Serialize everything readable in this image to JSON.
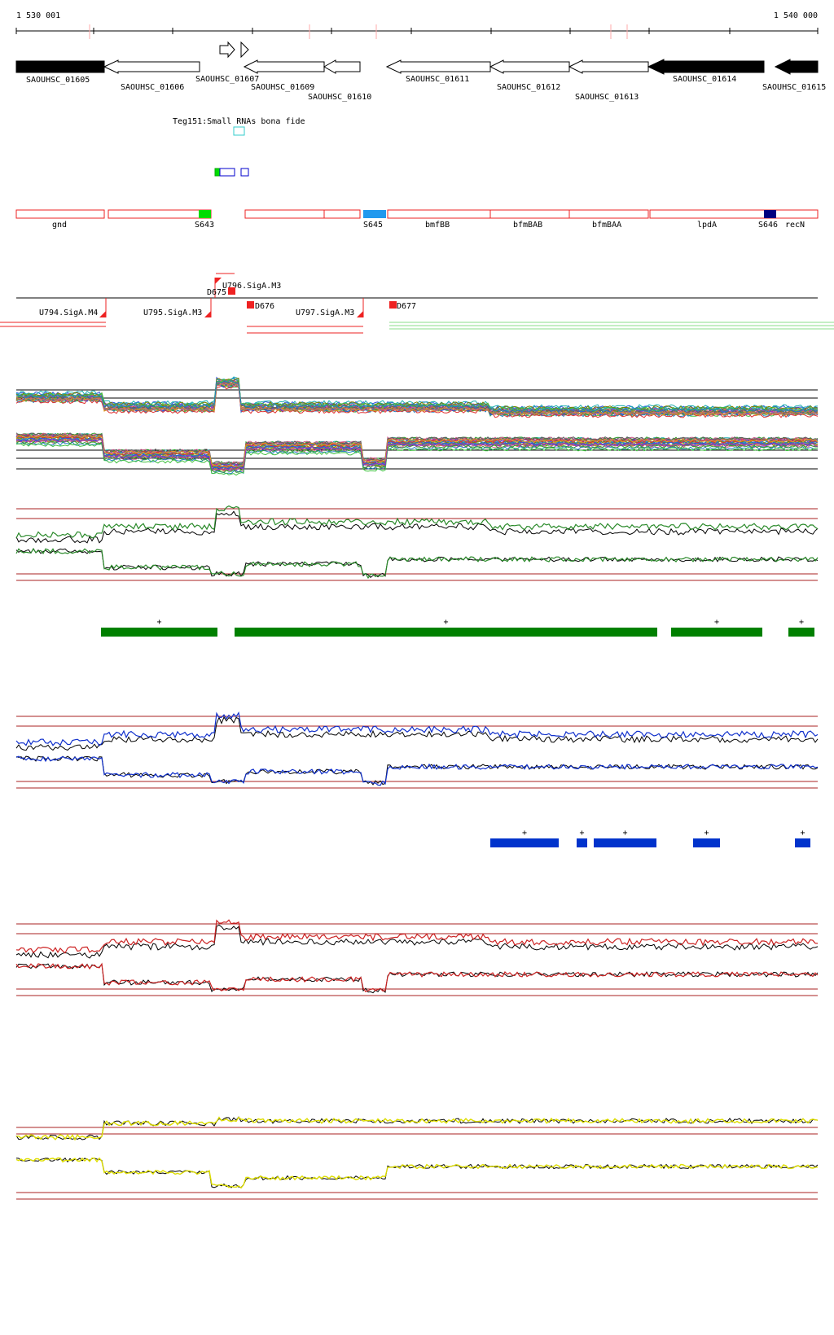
{
  "ruler": {
    "start_label": "1 530 001",
    "end_label": "1 540 000"
  },
  "genes": [
    {
      "name": "SAOUHSC_01605",
      "strand": "+",
      "fill": "black"
    },
    {
      "name": "SAOUHSC_01606",
      "strand": "-",
      "fill": "white"
    },
    {
      "name": "SAOUHSC_01607",
      "strand": "+",
      "fill": "white"
    },
    {
      "name": "SAOUHSC_01609",
      "strand": "-",
      "fill": "white"
    },
    {
      "name": "SAOUHSC_01610",
      "strand": "-",
      "fill": "white"
    },
    {
      "name": "SAOUHSC_01611",
      "strand": "-",
      "fill": "white"
    },
    {
      "name": "SAOUHSC_01612",
      "strand": "-",
      "fill": "white"
    },
    {
      "name": "SAOUHSC_01613",
      "strand": "-",
      "fill": "white"
    },
    {
      "name": "SAOUHSC_01614",
      "strand": "-",
      "fill": "black"
    },
    {
      "name": "SAOUHSC_01615",
      "strand": "-",
      "fill": "black"
    }
  ],
  "small_rna": {
    "label": "Teg151:Small RNAs bona fide",
    "color": "#33cccc"
  },
  "segments": [
    {
      "label": "gnd",
      "marker_color": ""
    },
    {
      "label": "S643",
      "marker_color": "#00dd00"
    },
    {
      "label": "",
      "marker_color": ""
    },
    {
      "label": "",
      "marker_color": ""
    },
    {
      "label": "S645",
      "marker_color": "#2299ee"
    },
    {
      "label": "bmfBB",
      "marker_color": ""
    },
    {
      "label": "bfmBAB",
      "marker_color": ""
    },
    {
      "label": "bfmBAA",
      "marker_color": ""
    },
    {
      "label": "lpdA",
      "marker_color": ""
    },
    {
      "label": "S646",
      "marker_color": "#000080"
    },
    {
      "label": "recN",
      "marker_color": ""
    }
  ],
  "promoters": [
    {
      "label": "U794.SigA.M4"
    },
    {
      "label": "U795.SigA.M3"
    },
    {
      "label": "U796.SigA.M3"
    },
    {
      "label": "U797.SigA.M3"
    }
  ],
  "terminators": [
    {
      "label": "D675"
    },
    {
      "label": "D676"
    },
    {
      "label": "D677"
    }
  ],
  "green_regions": [
    "+",
    "+",
    "+",
    "+"
  ],
  "blue_regions": [
    "+",
    "+",
    "+",
    "+",
    "+"
  ],
  "colors": {
    "feature_red": "#ee2222",
    "green": "#2a8a2a",
    "green_bar": "#008000",
    "blue": "#1030cc",
    "blue_bar": "#0033cc",
    "red": "#cc2222",
    "yellow": "#dddd00",
    "threshold": "#aa2222",
    "black": "#000000",
    "tick": "#ffaaaa"
  }
}
